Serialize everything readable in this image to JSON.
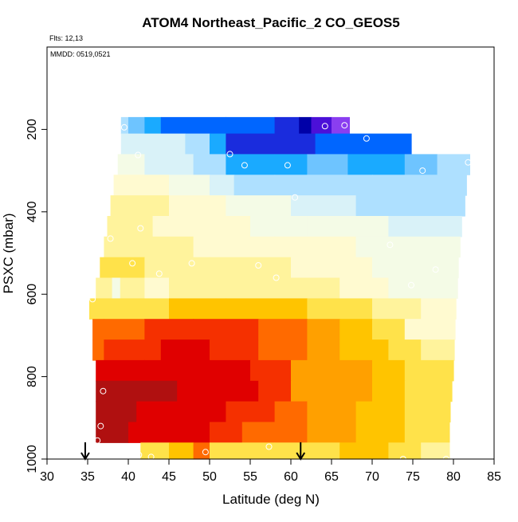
{
  "chart_data": {
    "type": "heatmap",
    "title": "ATOM4 Northeast_Pacific_2 CO_GEOS5",
    "annotations": [
      "Flts: 12,13",
      "MMDD: 0519,0521"
    ],
    "xlabel": "Latitude (deg N)",
    "ylabel": "PSXC (mbar)",
    "xlim": [
      30,
      85
    ],
    "ylim": [
      1000,
      0
    ],
    "x_ticks": [
      30,
      35,
      40,
      45,
      50,
      55,
      60,
      65,
      70,
      75,
      80,
      85
    ],
    "y_ticks": [
      200,
      400,
      600,
      800,
      1000
    ],
    "arrows_latitude": [
      34.7,
      61.2
    ],
    "palette": [
      "#7d0000",
      "#b01010",
      "#e00000",
      "#f53000",
      "#ff6a00",
      "#ffa000",
      "#ffc400",
      "#ffe24a",
      "#fff39c",
      "#fffad0",
      "#f4fbe6",
      "#d9f2f8",
      "#aee0ff",
      "#6ec4ff",
      "#1aaaff",
      "#0066ff",
      "#1a2cdd",
      "#0000a8",
      "#4b10d8",
      "#8a3ef0"
    ],
    "value_scale": "0 = highest CO (dark red) to 19 = lowest CO (purple)",
    "rows": [
      {
        "p_top": 170,
        "p_bot": 210,
        "lat_min": 39.1,
        "lat_max": 67.2,
        "segments": [
          [
            39.1,
            40,
            12
          ],
          [
            40,
            42,
            13
          ],
          [
            42,
            44,
            14
          ],
          [
            44,
            52,
            15
          ],
          [
            52,
            58,
            15
          ],
          [
            58,
            61,
            16
          ],
          [
            61,
            62.5,
            17
          ],
          [
            62.5,
            65,
            18
          ],
          [
            65,
            67.2,
            19
          ]
        ]
      },
      {
        "p_top": 210,
        "p_bot": 260,
        "lat_min": 39.1,
        "lat_max": 74.8,
        "segments": [
          [
            39.1,
            47,
            11
          ],
          [
            47,
            50,
            12
          ],
          [
            50,
            52,
            14
          ],
          [
            52,
            55,
            16
          ],
          [
            55,
            63,
            16
          ],
          [
            63,
            74.8,
            15
          ]
        ]
      },
      {
        "p_top": 260,
        "p_bot": 310,
        "lat_min": 38.7,
        "lat_max": 82.0,
        "segments": [
          [
            38.7,
            42,
            10
          ],
          [
            42,
            48,
            11
          ],
          [
            48,
            52,
            12
          ],
          [
            52,
            58,
            14
          ],
          [
            58,
            62,
            14
          ],
          [
            62,
            67,
            13
          ],
          [
            67,
            74,
            14
          ],
          [
            74,
            78,
            13
          ],
          [
            78,
            82,
            12
          ]
        ]
      },
      {
        "p_top": 310,
        "p_bot": 360,
        "lat_min": 38.2,
        "lat_max": 81.6,
        "segments": [
          [
            38.2,
            45,
            9
          ],
          [
            45,
            50,
            10
          ],
          [
            50,
            53,
            11
          ],
          [
            53,
            58,
            12
          ],
          [
            58,
            62,
            12
          ],
          [
            62,
            70,
            12
          ],
          [
            70,
            81.6,
            12
          ]
        ]
      },
      {
        "p_top": 360,
        "p_bot": 410,
        "lat_min": 37.8,
        "lat_max": 81.4,
        "segments": [
          [
            37.8,
            45,
            8
          ],
          [
            45,
            52,
            9
          ],
          [
            52,
            60,
            10
          ],
          [
            60,
            68,
            11
          ],
          [
            68,
            74,
            12
          ],
          [
            74,
            81.4,
            12
          ]
        ]
      },
      {
        "p_top": 410,
        "p_bot": 460,
        "lat_min": 37.4,
        "lat_max": 81.0,
        "segments": [
          [
            37.4,
            43,
            8
          ],
          [
            43,
            55,
            9
          ],
          [
            55,
            62,
            10
          ],
          [
            62,
            72,
            10
          ],
          [
            72,
            81,
            11
          ]
        ]
      },
      {
        "p_top": 460,
        "p_bot": 510,
        "lat_min": 37.0,
        "lat_max": 80.8,
        "segments": [
          [
            37,
            48,
            8
          ],
          [
            48,
            58,
            9
          ],
          [
            58,
            68,
            9
          ],
          [
            68,
            80.8,
            10
          ]
        ]
      },
      {
        "p_top": 510,
        "p_bot": 560,
        "lat_min": 36.5,
        "lat_max": 80.6,
        "segments": [
          [
            36.5,
            42,
            7
          ],
          [
            42,
            50,
            8
          ],
          [
            50,
            60,
            8
          ],
          [
            60,
            70,
            9
          ],
          [
            70,
            80.6,
            10
          ]
        ]
      },
      {
        "p_top": 560,
        "p_bot": 610,
        "lat_min": 36.0,
        "lat_max": 80.5,
        "segments": [
          [
            36,
            38,
            8
          ],
          [
            38,
            39,
            10
          ],
          [
            39,
            42,
            8
          ],
          [
            42,
            45,
            9
          ],
          [
            45,
            58,
            8
          ],
          [
            58,
            66,
            8
          ],
          [
            66,
            72,
            9
          ],
          [
            72,
            80.5,
            10
          ]
        ]
      },
      {
        "p_top": 610,
        "p_bot": 660,
        "lat_min": 35.2,
        "lat_max": 80.3,
        "segments": [
          [
            35.2,
            45,
            7
          ],
          [
            45,
            52,
            6
          ],
          [
            52,
            62,
            6
          ],
          [
            62,
            70,
            7
          ],
          [
            70,
            76,
            8
          ],
          [
            76,
            80.3,
            9
          ]
        ]
      },
      {
        "p_top": 660,
        "p_bot": 710,
        "lat_min": 35.6,
        "lat_max": 80.2,
        "segments": [
          [
            35.6,
            37,
            4
          ],
          [
            37,
            42,
            4
          ],
          [
            42,
            48,
            3
          ],
          [
            48,
            56,
            3
          ],
          [
            56,
            62,
            4
          ],
          [
            62,
            66,
            5
          ],
          [
            66,
            70,
            6
          ],
          [
            70,
            74,
            7
          ],
          [
            74,
            80.2,
            9
          ]
        ]
      },
      {
        "p_top": 710,
        "p_bot": 760,
        "lat_min": 35.6,
        "lat_max": 80.1,
        "segments": [
          [
            35.6,
            37,
            4
          ],
          [
            37,
            44,
            3
          ],
          [
            44,
            50,
            2
          ],
          [
            50,
            56,
            3
          ],
          [
            56,
            62,
            4
          ],
          [
            62,
            66,
            5
          ],
          [
            66,
            72,
            6
          ],
          [
            72,
            76,
            7
          ],
          [
            76,
            80.1,
            8
          ]
        ]
      },
      {
        "p_top": 760,
        "p_bot": 810,
        "lat_min": 36.0,
        "lat_max": 80.0,
        "segments": [
          [
            36,
            37,
            2
          ],
          [
            37,
            42,
            2
          ],
          [
            42,
            50,
            2
          ],
          [
            50,
            55,
            2
          ],
          [
            55,
            60,
            3
          ],
          [
            60,
            64,
            5
          ],
          [
            64,
            70,
            5
          ],
          [
            70,
            74,
            6
          ],
          [
            74,
            80,
            7
          ]
        ]
      },
      {
        "p_top": 810,
        "p_bot": 860,
        "lat_min": 36.0,
        "lat_max": 79.8,
        "segments": [
          [
            36,
            41,
            1
          ],
          [
            41,
            46,
            1
          ],
          [
            46,
            50,
            2
          ],
          [
            50,
            56,
            2
          ],
          [
            56,
            60,
            3
          ],
          [
            60,
            64,
            5
          ],
          [
            64,
            70,
            5
          ],
          [
            70,
            74,
            6
          ],
          [
            74,
            79.8,
            7
          ]
        ]
      },
      {
        "p_top": 860,
        "p_bot": 910,
        "lat_min": 36.0,
        "lat_max": 79.6,
        "segments": [
          [
            36,
            41,
            1
          ],
          [
            41,
            46,
            2
          ],
          [
            46,
            52,
            2
          ],
          [
            52,
            58,
            3
          ],
          [
            58,
            62,
            4
          ],
          [
            62,
            68,
            5
          ],
          [
            68,
            74,
            6
          ],
          [
            74,
            79.6,
            7
          ]
        ]
      },
      {
        "p_top": 910,
        "p_bot": 960,
        "lat_min": 36.0,
        "lat_max": 79.5,
        "segments": [
          [
            36,
            40,
            1
          ],
          [
            40,
            44,
            2
          ],
          [
            44,
            50,
            2
          ],
          [
            50,
            54,
            3
          ],
          [
            54,
            58,
            4
          ],
          [
            58,
            62,
            4
          ],
          [
            62,
            68,
            5
          ],
          [
            68,
            74,
            6
          ],
          [
            74,
            79.5,
            7
          ]
        ]
      },
      {
        "p_top": 960,
        "p_bot": 1000,
        "lat_min": 41.5,
        "lat_max": 79.5,
        "segments": [
          [
            41.5,
            45,
            7
          ],
          [
            45,
            48,
            6
          ],
          [
            48,
            50,
            4
          ],
          [
            50,
            58,
            7
          ],
          [
            58,
            66,
            7
          ],
          [
            66,
            72,
            6
          ],
          [
            72,
            76,
            7
          ],
          [
            76,
            79.5,
            8
          ]
        ]
      }
    ],
    "points": [
      [
        39.5,
        195
      ],
      [
        66.6,
        190
      ],
      [
        64.2,
        192
      ],
      [
        69.3,
        222
      ],
      [
        41.2,
        262
      ],
      [
        52.5,
        260
      ],
      [
        54.3,
        287
      ],
      [
        59.6,
        287
      ],
      [
        76.2,
        300
      ],
      [
        81.8,
        280
      ],
      [
        60.5,
        365
      ],
      [
        41.5,
        440
      ],
      [
        37.8,
        465
      ],
      [
        72.2,
        480
      ],
      [
        40.5,
        525
      ],
      [
        47.8,
        525
      ],
      [
        56.0,
        530
      ],
      [
        58.2,
        560
      ],
      [
        43.8,
        550
      ],
      [
        77.8,
        540
      ],
      [
        35.6,
        612
      ],
      [
        74.8,
        578
      ],
      [
        36.9,
        835
      ],
      [
        36.6,
        920
      ],
      [
        36.2,
        955
      ],
      [
        41.3,
        990
      ],
      [
        42.8,
        995
      ],
      [
        49.5,
        983
      ],
      [
        57.3,
        970
      ],
      [
        73.8,
        1000
      ],
      [
        79.1,
        1000
      ]
    ]
  }
}
